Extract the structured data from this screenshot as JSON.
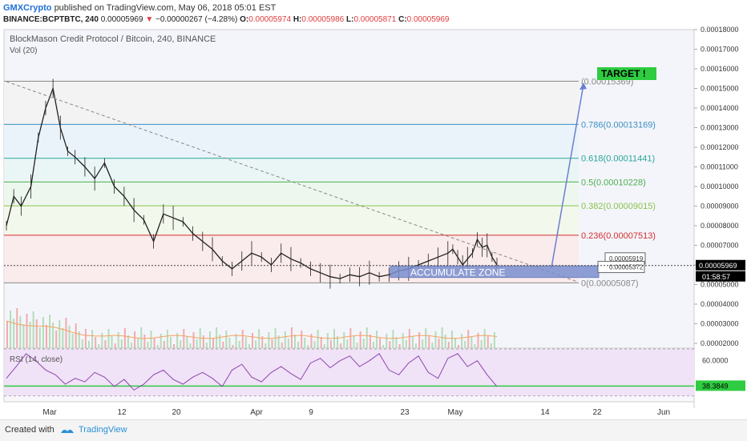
{
  "header": {
    "author": "GMXCrypto",
    "published_text": "published on TradingView.com, May 06, 2018 05:01 EST",
    "symbol_line": "BINANCE:BCPTBTC, 240",
    "last": "0.00005969",
    "change": "−0.00000267 (−4.28%)",
    "o_label": "O:",
    "o": "0.00005974",
    "h_label": "H:",
    "h": "0.00005986",
    "l_label": "L:",
    "l": "0.00005871",
    "c_label": "C:",
    "c": "0.00005969",
    "down_color": "#e03c3c"
  },
  "footer": {
    "created_with": "Created with",
    "brand": "TradingView"
  },
  "chart_data": {
    "type": "line",
    "title": "BlockMason Credit Protocol / Bitcoin, 240, BINANCE",
    "volume_label": "Vol (20)",
    "rsi_label": "RSI (14, close)",
    "y_ticks": [
      "0.00018000",
      "0.00017000",
      "0.00016000",
      "0.00015000",
      "0.00014000",
      "0.00013000",
      "0.00012000",
      "0.00011000",
      "0.00010000",
      "0.00009000",
      "0.00008000",
      "0.00007000",
      "0.00006000",
      "0.00005000",
      "0.00004000",
      "0.00003000",
      "0.00002000"
    ],
    "ylim": [
      2e-05,
      0.00018
    ],
    "x_ticks": [
      "Mar",
      "12",
      "20",
      "Apr",
      "9",
      "23",
      "May",
      "14",
      "22",
      "Jun"
    ],
    "price_tag": "0.00005969",
    "time_tag": "01:58:57",
    "rsi_ticks": [
      "60.0000"
    ],
    "rsi_tag": "38.3849",
    "rsi_range": [
      25,
      70
    ],
    "fib_levels": [
      {
        "label": "(0.00015369)",
        "value": 0.00015369,
        "color": "#888888"
      },
      {
        "label": "0.786(0.00013169)",
        "value": 0.00013169,
        "color": "#3a8fc2"
      },
      {
        "label": "0.618(0.00011441)",
        "value": 0.00011441,
        "color": "#26a69a"
      },
      {
        "label": "0.5(0.00010228)",
        "value": 0.00010228,
        "color": "#4caf50"
      },
      {
        "label": "0.382(0.00009015)",
        "value": 9.015e-05,
        "color": "#8bc34a"
      },
      {
        "label": "0.236(0.00007513)",
        "value": 7.513e-05,
        "color": "#d32f2f"
      },
      {
        "label": "0(0.00005087)",
        "value": 5.087e-05,
        "color": "#888888"
      }
    ],
    "annotations": {
      "target": "TARGET !",
      "accumulate": "ACCUMULATE ZONE",
      "box_upper": "0.00005919",
      "box_lower": "0.00005372"
    },
    "price_series": [
      [
        0.0,
        8e-05
      ],
      [
        1.5,
        9.5e-05
      ],
      [
        3,
        9e-05
      ],
      [
        5,
        0.0001
      ],
      [
        6.5,
        0.000125
      ],
      [
        8,
        0.00014
      ],
      [
        9.5,
        0.00015
      ],
      [
        11,
        0.00013
      ],
      [
        12.5,
        0.000118
      ],
      [
        14,
        0.000115
      ],
      [
        16,
        0.00011
      ],
      [
        18,
        0.000104
      ],
      [
        20,
        0.000112
      ],
      [
        22,
        0.0001
      ],
      [
        24,
        9.5e-05
      ],
      [
        26,
        8.8e-05
      ],
      [
        28,
        8.3e-05
      ],
      [
        30,
        7.2e-05
      ],
      [
        32,
        8.6e-05
      ],
      [
        34,
        8.4e-05
      ],
      [
        36,
        8.2e-05
      ],
      [
        38,
        7.6e-05
      ],
      [
        40,
        7.2e-05
      ],
      [
        42,
        6.8e-05
      ],
      [
        44,
        6.2e-05
      ],
      [
        46,
        5.8e-05
      ],
      [
        48,
        6.2e-05
      ],
      [
        50,
        6.6e-05
      ],
      [
        52,
        6.4e-05
      ],
      [
        54,
        6e-05
      ],
      [
        56,
        6.6e-05
      ],
      [
        58,
        6.3e-05
      ],
      [
        60,
        6.1e-05
      ],
      [
        62,
        5.8e-05
      ],
      [
        64,
        5.6e-05
      ],
      [
        66,
        5.4e-05
      ],
      [
        68,
        5.3e-05
      ],
      [
        70,
        5.5e-05
      ],
      [
        72,
        5.4e-05
      ],
      [
        74,
        5.6e-05
      ],
      [
        76,
        5.4e-05
      ],
      [
        78,
        5.5e-05
      ],
      [
        80,
        5.7e-05
      ],
      [
        82,
        5.8e-05
      ],
      [
        84,
        6e-05
      ],
      [
        86,
        6.2e-05
      ],
      [
        88,
        6.4e-05
      ],
      [
        90,
        6.6e-05
      ],
      [
        91,
        6.8e-05
      ],
      [
        92,
        6.4e-05
      ],
      [
        93,
        6e-05
      ],
      [
        94,
        6.3e-05
      ],
      [
        95,
        6.6e-05
      ],
      [
        96,
        7.3e-05
      ],
      [
        97,
        6.9e-05
      ],
      [
        98,
        7e-05
      ],
      [
        99,
        6.4e-05
      ],
      [
        100,
        6e-05
      ]
    ],
    "rsi_series": [
      [
        0,
        45
      ],
      [
        2,
        55
      ],
      [
        4,
        66
      ],
      [
        6,
        60
      ],
      [
        8,
        52
      ],
      [
        10,
        48
      ],
      [
        12,
        40
      ],
      [
        14,
        45
      ],
      [
        16,
        42
      ],
      [
        18,
        50
      ],
      [
        20,
        46
      ],
      [
        22,
        38
      ],
      [
        24,
        44
      ],
      [
        26,
        35
      ],
      [
        28,
        40
      ],
      [
        30,
        48
      ],
      [
        32,
        52
      ],
      [
        34,
        44
      ],
      [
        36,
        40
      ],
      [
        38,
        46
      ],
      [
        40,
        50
      ],
      [
        42,
        45
      ],
      [
        44,
        38
      ],
      [
        46,
        52
      ],
      [
        48,
        57
      ],
      [
        50,
        46
      ],
      [
        52,
        42
      ],
      [
        54,
        50
      ],
      [
        56,
        55
      ],
      [
        58,
        49
      ],
      [
        60,
        44
      ],
      [
        62,
        58
      ],
      [
        64,
        62
      ],
      [
        66,
        54
      ],
      [
        68,
        60
      ],
      [
        70,
        64
      ],
      [
        72,
        55
      ],
      [
        74,
        60
      ],
      [
        76,
        66
      ],
      [
        78,
        52
      ],
      [
        80,
        48
      ],
      [
        82,
        58
      ],
      [
        84,
        64
      ],
      [
        86,
        50
      ],
      [
        88,
        45
      ],
      [
        90,
        62
      ],
      [
        92,
        66
      ],
      [
        94,
        55
      ],
      [
        96,
        60
      ],
      [
        98,
        48
      ],
      [
        100,
        38
      ]
    ]
  }
}
